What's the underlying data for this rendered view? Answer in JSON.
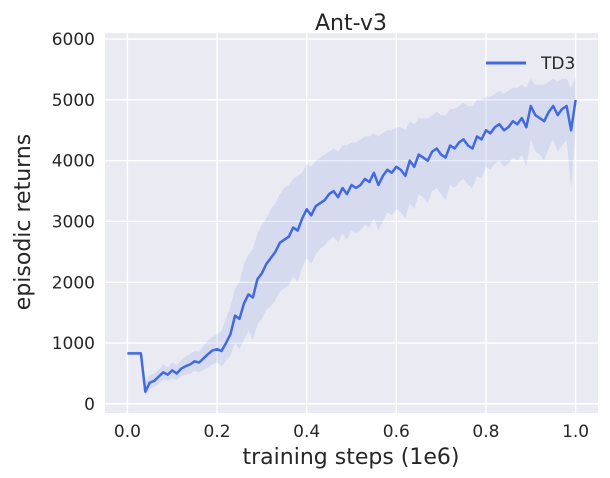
{
  "chart_data": {
    "type": "line",
    "title": "Ant-v3",
    "xlabel": "training steps (1e6)",
    "ylabel": "episodic returns",
    "xlim": [
      -0.05,
      1.05
    ],
    "ylim": [
      -150,
      6100
    ],
    "xticks": [
      0.0,
      0.2,
      0.4,
      0.6,
      0.8,
      1.0
    ],
    "xtick_labels": [
      "0.0",
      "0.2",
      "0.4",
      "0.6",
      "0.8",
      "1.0"
    ],
    "yticks": [
      0,
      1000,
      2000,
      3000,
      4000,
      5000,
      6000
    ],
    "ytick_labels": [
      "0",
      "1000",
      "2000",
      "3000",
      "4000",
      "5000",
      "6000"
    ],
    "grid": true,
    "legend_position": "top-right",
    "colors": {
      "background": "#eaeaf2",
      "line": "#4169e1",
      "band": "#4169e1"
    },
    "series": [
      {
        "name": "TD3",
        "x": [
          0.0,
          0.01,
          0.02,
          0.03,
          0.04,
          0.05,
          0.06,
          0.07,
          0.08,
          0.09,
          0.1,
          0.11,
          0.12,
          0.13,
          0.14,
          0.15,
          0.16,
          0.17,
          0.18,
          0.19,
          0.2,
          0.21,
          0.22,
          0.23,
          0.24,
          0.25,
          0.26,
          0.27,
          0.28,
          0.29,
          0.3,
          0.31,
          0.32,
          0.33,
          0.34,
          0.35,
          0.36,
          0.37,
          0.38,
          0.39,
          0.4,
          0.41,
          0.42,
          0.43,
          0.44,
          0.45,
          0.46,
          0.47,
          0.48,
          0.49,
          0.5,
          0.51,
          0.52,
          0.53,
          0.54,
          0.55,
          0.56,
          0.57,
          0.58,
          0.59,
          0.6,
          0.61,
          0.62,
          0.63,
          0.64,
          0.65,
          0.66,
          0.67,
          0.68,
          0.69,
          0.7,
          0.71,
          0.72,
          0.73,
          0.74,
          0.75,
          0.76,
          0.77,
          0.78,
          0.79,
          0.8,
          0.81,
          0.82,
          0.83,
          0.84,
          0.85,
          0.86,
          0.87,
          0.88,
          0.89,
          0.9,
          0.91,
          0.92,
          0.93,
          0.94,
          0.95,
          0.96,
          0.97,
          0.98,
          0.99,
          1.0
        ],
        "values": [
          830,
          830,
          830,
          830,
          200,
          350,
          380,
          450,
          520,
          480,
          550,
          500,
          580,
          620,
          650,
          700,
          680,
          750,
          820,
          880,
          900,
          870,
          1000,
          1150,
          1450,
          1400,
          1650,
          1800,
          1750,
          2050,
          2150,
          2300,
          2400,
          2500,
          2650,
          2700,
          2750,
          2900,
          2850,
          3050,
          3200,
          3100,
          3250,
          3300,
          3350,
          3450,
          3500,
          3400,
          3550,
          3450,
          3600,
          3550,
          3600,
          3700,
          3650,
          3800,
          3600,
          3750,
          3850,
          3800,
          3900,
          3850,
          3750,
          4000,
          3900,
          4100,
          4050,
          4000,
          4150,
          4200,
          4100,
          4050,
          4250,
          4200,
          4300,
          4350,
          4250,
          4200,
          4400,
          4350,
          4500,
          4450,
          4550,
          4600,
          4500,
          4550,
          4650,
          4600,
          4700,
          4550,
          4900,
          4750,
          4700,
          4650,
          4800,
          4900,
          4750,
          4850,
          4900,
          4500,
          5000
        ],
        "upper": [
          860,
          860,
          860,
          860,
          350,
          480,
          500,
          560,
          650,
          600,
          680,
          640,
          720,
          780,
          820,
          870,
          860,
          960,
          1050,
          1100,
          1150,
          1200,
          1400,
          1600,
          1900,
          2000,
          2300,
          2450,
          2550,
          2800,
          2950,
          3050,
          3200,
          3300,
          3450,
          3550,
          3600,
          3700,
          3750,
          3800,
          3950,
          3900,
          4000,
          4050,
          4100,
          4150,
          4200,
          4150,
          4250,
          4250,
          4300,
          4300,
          4350,
          4400,
          4400,
          4450,
          4400,
          4450,
          4500,
          4500,
          4550,
          4550,
          4500,
          4650,
          4600,
          4700,
          4700,
          4700,
          4750,
          4800,
          4750,
          4750,
          4850,
          4850,
          4900,
          4950,
          4900,
          4900,
          5000,
          5000,
          5050,
          5050,
          5100,
          5150,
          5100,
          5150,
          5200,
          5200,
          5250,
          5200,
          5350,
          5250,
          5250,
          5250,
          5300,
          5350,
          5300,
          5350,
          5350,
          5200,
          5400
        ],
        "lower": [
          800,
          800,
          800,
          800,
          120,
          250,
          280,
          330,
          400,
          380,
          420,
          390,
          450,
          480,
          500,
          540,
          520,
          560,
          600,
          650,
          680,
          620,
          700,
          800,
          1000,
          900,
          1050,
          1200,
          1050,
          1300,
          1400,
          1550,
          1600,
          1700,
          1850,
          1900,
          1950,
          2100,
          2000,
          2250,
          2400,
          2300,
          2450,
          2550,
          2600,
          2700,
          2750,
          2650,
          2800,
          2700,
          2850,
          2800,
          2850,
          2950,
          2900,
          3050,
          2850,
          3000,
          3150,
          3100,
          3200,
          3150,
          3050,
          3300,
          3200,
          3450,
          3400,
          3300,
          3500,
          3550,
          3450,
          3350,
          3600,
          3550,
          3650,
          3700,
          3600,
          3550,
          3750,
          3700,
          3900,
          3850,
          3950,
          4000,
          3900,
          3950,
          4050,
          4000,
          4100,
          3900,
          4350,
          4150,
          4100,
          4000,
          4200,
          4350,
          4150,
          4250,
          4350,
          3550,
          4500
        ]
      }
    ]
  }
}
